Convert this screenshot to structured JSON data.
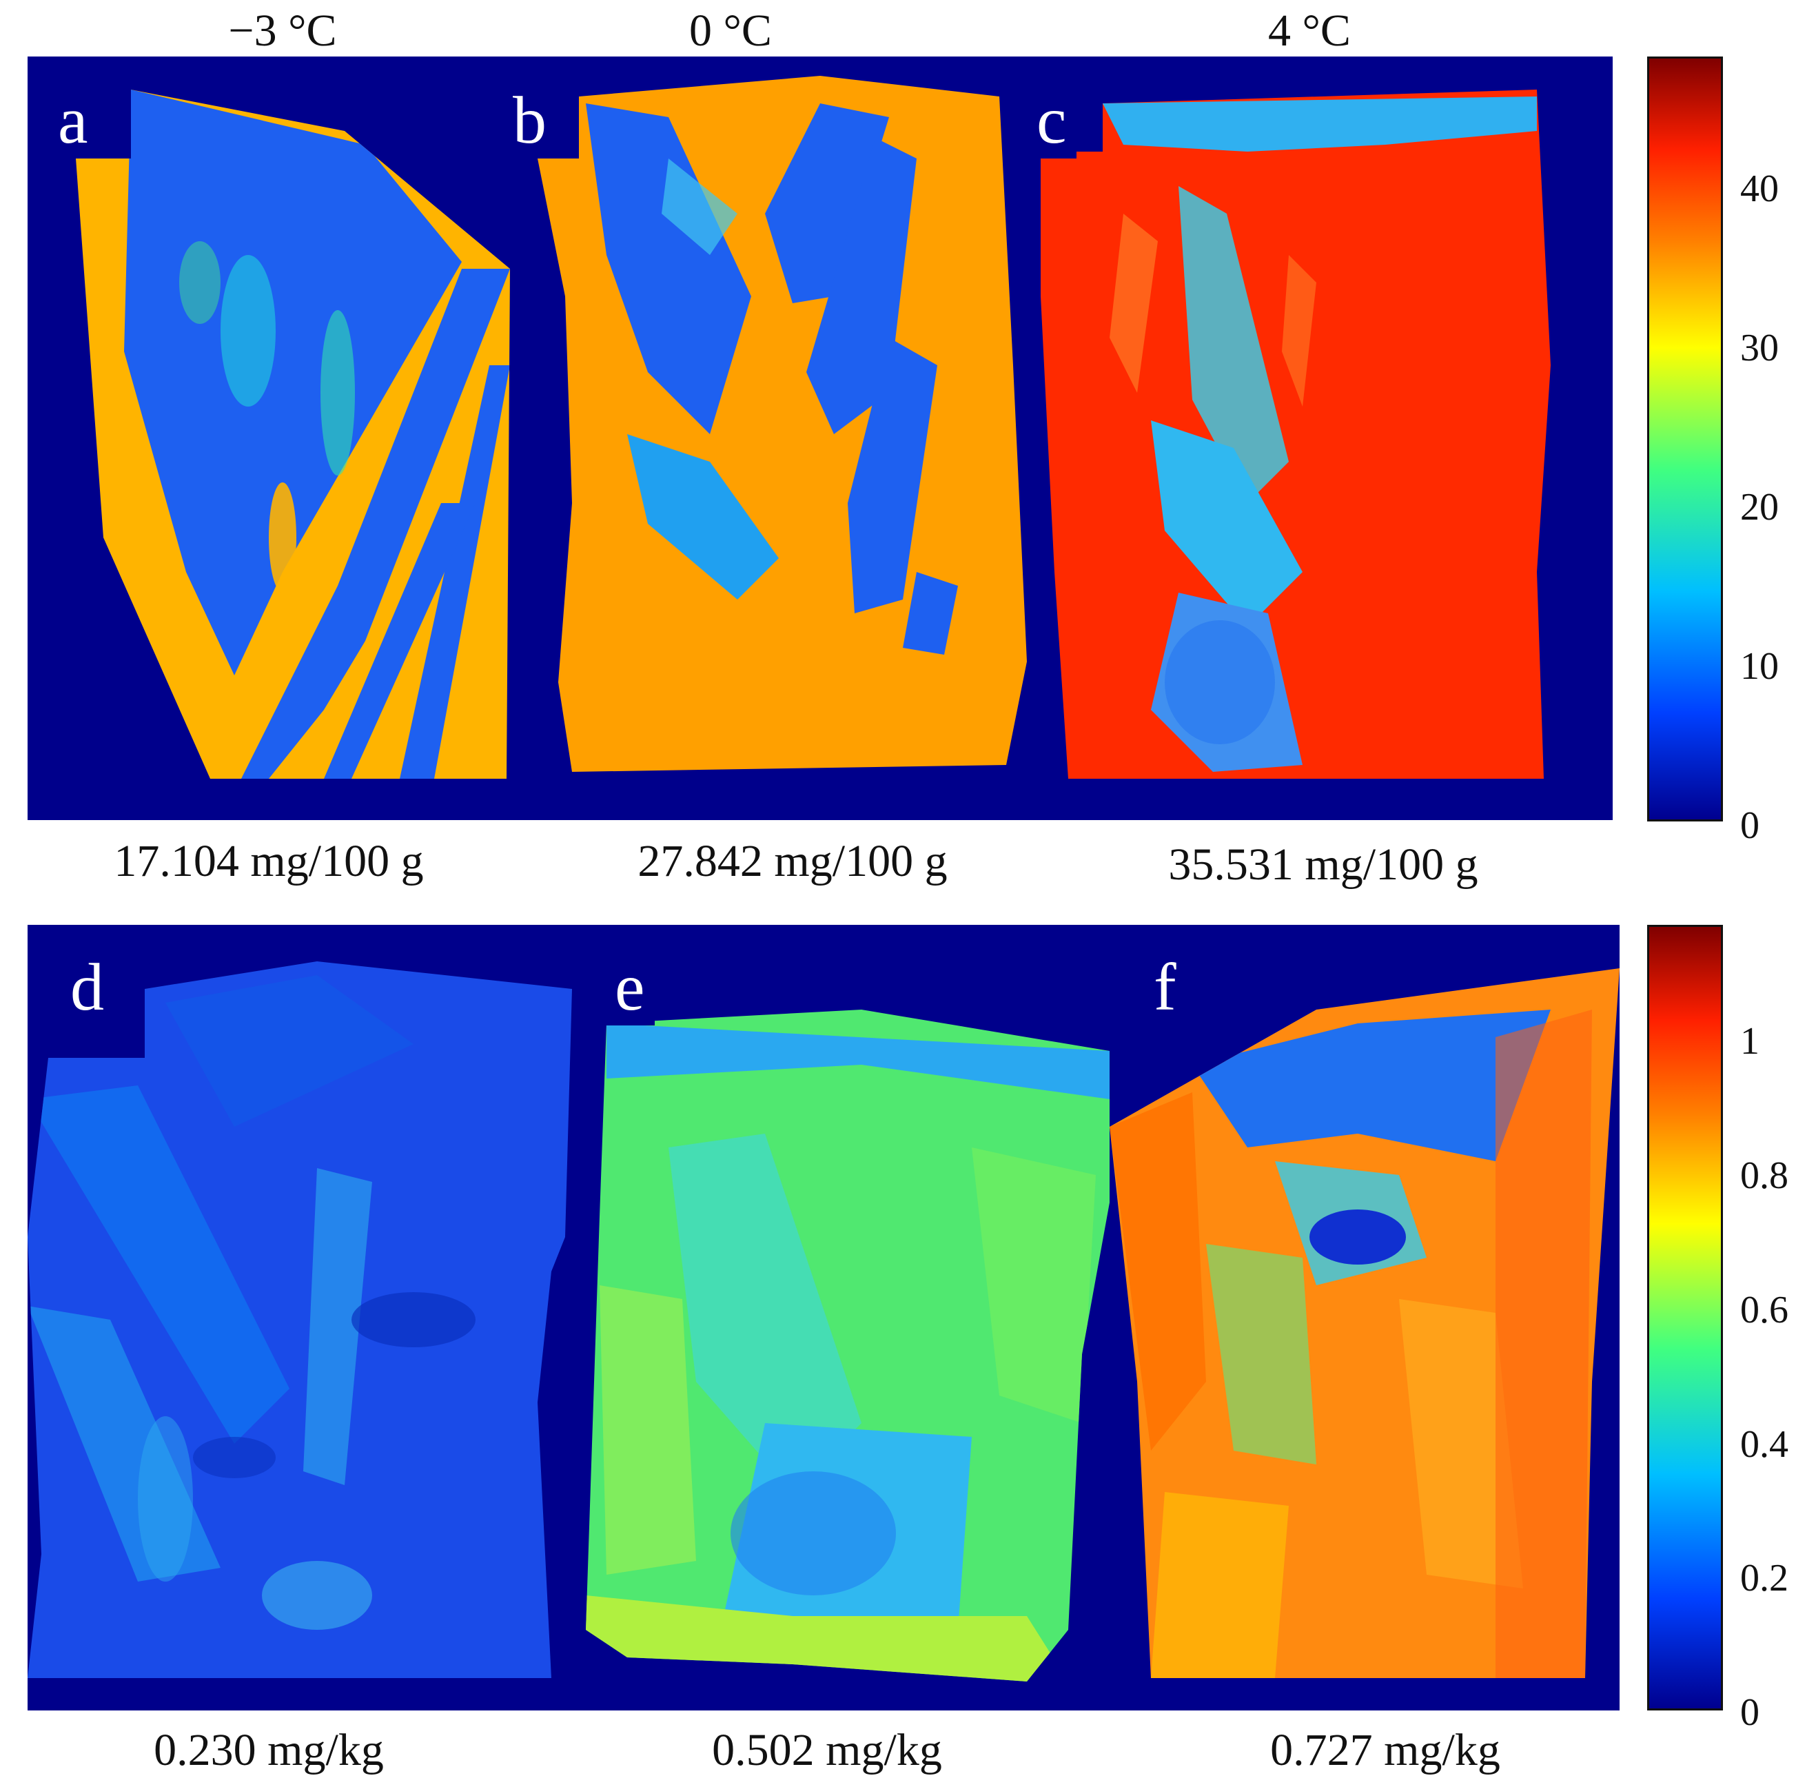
{
  "temperatures": [
    "−3 °C",
    "0 °C",
    "4 °C"
  ],
  "panels_top": [
    {
      "letter": "a",
      "value_label": "17.104 mg/100 g"
    },
    {
      "letter": "b",
      "value_label": "27.842 mg/100 g"
    },
    {
      "letter": "c",
      "value_label": "35.531 mg/100 g"
    }
  ],
  "panels_bottom": [
    {
      "letter": "d",
      "value_label": "0.230 mg/kg"
    },
    {
      "letter": "e",
      "value_label": "0.502 mg/kg"
    },
    {
      "letter": "f",
      "value_label": "0.727 mg/kg"
    }
  ],
  "colorbar_top": {
    "min": 0,
    "max": 48,
    "ticks": [
      "0",
      "10",
      "20",
      "30",
      "40"
    ]
  },
  "colorbar_bottom": {
    "min": 0,
    "max": 1.17,
    "ticks": [
      "0",
      "0.2",
      "0.4",
      "0.6",
      "0.8",
      "1"
    ]
  },
  "colors": {
    "background": "#00008b",
    "colormap": [
      "#00008f",
      "#0040ff",
      "#00bfff",
      "#40ff80",
      "#ffff00",
      "#ff8000",
      "#ff2000",
      "#800000"
    ]
  }
}
